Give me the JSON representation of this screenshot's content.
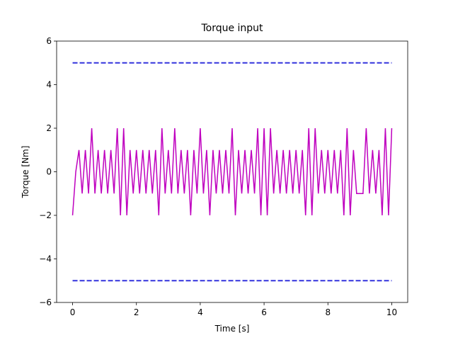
{
  "chart_data": {
    "type": "line",
    "title": "Torque input",
    "x_label": "Time [s]",
    "y_label": "Torque [Nm]",
    "xlim": [
      -0.5,
      10.5
    ],
    "ylim": [
      -6,
      6
    ],
    "xticks": [
      0,
      2,
      4,
      6,
      8,
      10
    ],
    "yticks": [
      {
        "value": -6,
        "label": "−6"
      },
      {
        "value": -4,
        "label": "−4"
      },
      {
        "value": -2,
        "label": "−2"
      },
      0,
      2,
      4,
      6
    ],
    "series": [
      {
        "color": "#bf00bf",
        "style": "solid",
        "x": [
          0,
          0.1,
          0.2,
          0.3,
          0.4,
          0.5,
          0.6,
          0.7,
          0.8,
          0.9,
          1,
          1.1,
          1.2,
          1.3,
          1.4,
          1.5,
          1.6,
          1.7,
          1.8,
          1.9,
          2,
          2.1,
          2.2,
          2.3,
          2.4,
          2.5,
          2.6,
          2.7,
          2.8,
          2.9,
          3,
          3.1,
          3.2,
          3.3,
          3.4,
          3.5,
          3.6,
          3.7,
          3.8,
          3.9,
          4,
          4.1,
          4.2,
          4.3,
          4.4,
          4.5,
          4.6,
          4.7,
          4.8,
          4.9,
          5,
          5.1,
          5.2,
          5.3,
          5.4,
          5.5,
          5.6,
          5.7,
          5.8,
          5.9,
          6,
          6.1,
          6.2,
          6.3,
          6.4,
          6.5,
          6.6,
          6.7,
          6.8,
          6.9,
          7,
          7.1,
          7.2,
          7.3,
          7.4,
          7.5,
          7.6,
          7.7,
          7.8,
          7.9,
          8,
          8.1,
          8.2,
          8.3,
          8.4,
          8.5,
          8.6,
          8.7,
          8.8,
          8.9,
          9,
          9.1,
          9.2,
          9.3,
          9.4,
          9.5,
          9.6,
          9.7,
          9.8,
          9.9,
          10
        ],
        "values": [
          -2,
          0,
          1,
          -1,
          1,
          -1,
          2,
          -1,
          1,
          -1,
          1,
          -1,
          1,
          -1,
          2,
          -2,
          2,
          -2,
          1,
          -1,
          1,
          -1,
          1,
          -1,
          1,
          -1,
          1,
          -2,
          2,
          -1,
          1,
          -1,
          2,
          -1,
          1,
          -1,
          1,
          -2,
          1,
          -1,
          2,
          -1,
          1,
          -2,
          1,
          -1,
          1,
          -1,
          1,
          -1,
          2,
          -2,
          1,
          -1,
          1,
          -1,
          1,
          -1,
          2,
          -2,
          2,
          -2,
          2,
          -1,
          1,
          -1,
          1,
          -1,
          1,
          -1,
          1,
          -1,
          1,
          -2,
          2,
          -2,
          2,
          -1,
          1,
          -1,
          1,
          -1,
          1,
          -1,
          1,
          -2,
          2,
          -2,
          1,
          -1,
          -1,
          -1,
          2,
          -1,
          1,
          -1,
          1,
          -2,
          2,
          -2,
          2
        ]
      },
      {
        "color": "#3333dd",
        "style": "dashed",
        "x": [
          0,
          10
        ],
        "values": [
          5,
          5
        ]
      },
      {
        "color": "#3333dd",
        "style": "dashed",
        "x": [
          0,
          10
        ],
        "values": [
          -5,
          -5
        ]
      }
    ]
  }
}
